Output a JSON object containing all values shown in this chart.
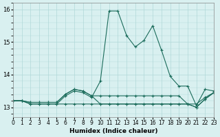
{
  "xlabel": "Humidex (Indice chaleur)",
  "xlim": [
    0,
    23
  ],
  "ylim": [
    12.7,
    16.2
  ],
  "yticks": [
    13,
    14,
    15,
    16
  ],
  "background_color": "#d9f0f0",
  "grid_color": "#b0d8d8",
  "line_color": "#1a6b5a",
  "lines": [
    [
      13.2,
      13.2,
      13.1,
      13.1,
      13.1,
      13.1,
      13.35,
      13.5,
      13.45,
      13.3,
      13.8,
      15.95,
      15.95,
      15.2,
      14.85,
      15.05,
      15.5,
      14.75,
      13.95,
      13.65,
      13.65,
      13.05,
      13.55,
      13.5
    ],
    [
      13.2,
      13.2,
      13.15,
      13.15,
      13.15,
      13.15,
      13.4,
      13.55,
      13.5,
      13.35,
      13.1,
      13.1,
      13.1,
      13.1,
      13.1,
      13.1,
      13.1,
      13.1,
      13.1,
      13.1,
      13.1,
      13.1,
      13.3,
      13.45
    ],
    [
      13.2,
      13.2,
      13.15,
      13.15,
      13.15,
      13.15,
      13.4,
      13.55,
      13.5,
      13.35,
      13.35,
      13.35,
      13.35,
      13.35,
      13.35,
      13.35,
      13.35,
      13.35,
      13.35,
      13.35,
      13.1,
      13.0,
      13.25,
      13.45
    ],
    [
      13.2,
      13.2,
      13.1,
      13.1,
      13.1,
      13.1,
      13.1,
      13.1,
      13.1,
      13.1,
      13.1,
      13.1,
      13.1,
      13.1,
      13.1,
      13.1,
      13.1,
      13.1,
      13.1,
      13.1,
      13.1,
      13.0,
      13.25,
      13.45
    ]
  ]
}
